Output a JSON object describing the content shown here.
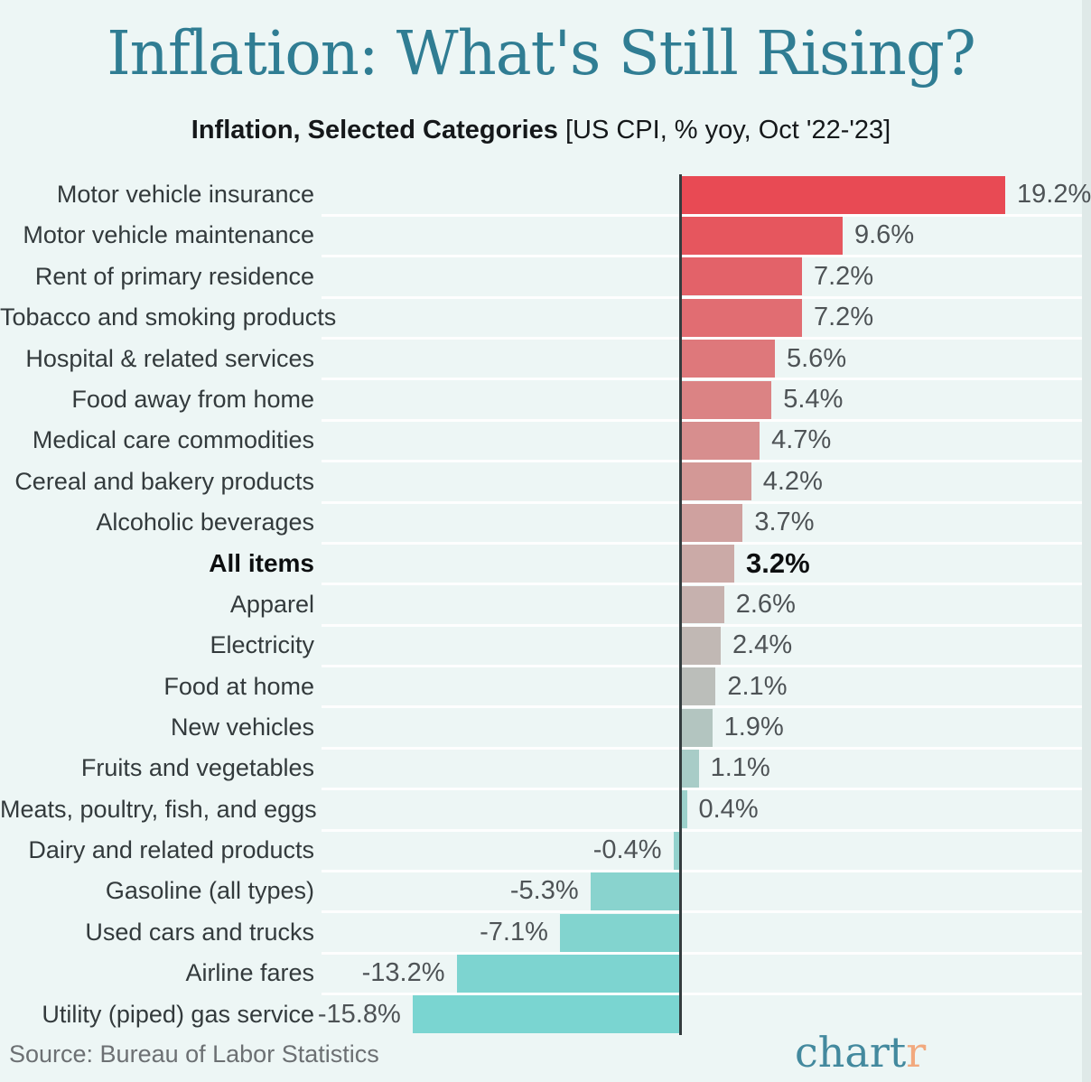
{
  "title": "Inflation: What's Still Rising?",
  "subtitle": {
    "bold": "Inflation, Selected Categories",
    "rest": " [US CPI, % yoy, Oct '22-'23]"
  },
  "source": "Source: Bureau of Labor Statistics",
  "logo": {
    "text_main": "chart",
    "text_accent": "r",
    "color_main": "#43899e",
    "color_accent": "#f2a97e"
  },
  "colors": {
    "background": "#edf6f5",
    "title": "#307d93",
    "zero_line": "#343c3e",
    "category_text": "#333a3c",
    "value_text": "#4e5356",
    "emphasis_text": "#0d0f10",
    "row_separator": "rgba(255,255,255,0.9)"
  },
  "chart_data": {
    "type": "bar",
    "orientation": "horizontal",
    "title": "Inflation: What's Still Rising?",
    "subtitle": "Inflation, Selected Categories [US CPI, % yoy, Oct '22-'23]",
    "unit": "% yoy",
    "xlim": [
      -21,
      23.7
    ],
    "grid": "white row separators only, no axis ticks",
    "legend": "none",
    "emphasized_category": "All items",
    "categories": [
      "Motor vehicle insurance",
      "Motor vehicle maintenance",
      "Rent of primary residence",
      "Tobacco and smoking products",
      "Hospital & related services",
      "Food away from home",
      "Medical care commodities",
      "Cereal and bakery products",
      "Alcoholic beverages",
      "All items",
      "Apparel",
      "Electricity",
      "Food at home",
      "New vehicles",
      "Fruits and vegetables",
      "Meats, poultry, fish, and eggs",
      "Dairy and related products",
      "Gasoline (all types)",
      "Used cars and trucks",
      "Airline fares",
      "Utility (piped) gas service"
    ],
    "values": [
      19.2,
      9.6,
      7.2,
      7.2,
      5.6,
      5.4,
      4.7,
      4.2,
      3.7,
      3.2,
      2.6,
      2.4,
      2.1,
      1.9,
      1.1,
      0.4,
      -0.4,
      -5.3,
      -7.1,
      -13.2,
      -15.8
    ],
    "value_labels": [
      "19.2%",
      "9.6%",
      "7.2%",
      "7.2%",
      "5.6%",
      "5.4%",
      "4.7%",
      "4.2%",
      "3.7%",
      "3.2%",
      "2.6%",
      "2.4%",
      "2.1%",
      "1.9%",
      "1.1%",
      "0.4%",
      "-0.4%",
      "-5.3%",
      "-7.1%",
      "-13.2%",
      "-15.8%"
    ],
    "bar_colors": [
      "#e84a54",
      "#e6565e",
      "#e36269",
      "#e16d72",
      "#de787b",
      "#db8384",
      "#d78e8e",
      "#d39896",
      "#cfa19f",
      "#cbaaa7",
      "#c6b1ae",
      "#c1b8b4",
      "#bbbeba",
      "#b3c5c0",
      "#a8ccc7",
      "#9cd1cb",
      "#92d2cd",
      "#89d3ce",
      "#82d4cf",
      "#7dd4d0",
      "#7ad5d1"
    ]
  }
}
